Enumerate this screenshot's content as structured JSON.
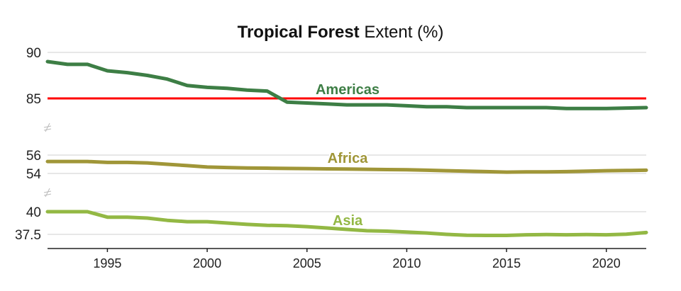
{
  "chart_data": {
    "type": "line",
    "title_bold": "Tropical Forest",
    "title_rest": " Extent (%)",
    "xlim": [
      1992,
      2022
    ],
    "x_ticks": [
      1995,
      2000,
      2005,
      2010,
      2015,
      2020
    ],
    "x": [
      1992,
      1993,
      1994,
      1995,
      1996,
      1997,
      1998,
      1999,
      2000,
      2001,
      2002,
      2003,
      2004,
      2005,
      2006,
      2007,
      2008,
      2009,
      2010,
      2011,
      2012,
      2013,
      2014,
      2015,
      2016,
      2017,
      2018,
      2019,
      2020,
      2021,
      2022
    ],
    "grid": true,
    "axis_break": true,
    "series": [
      {
        "name": "Americas",
        "color": "#3d7e45",
        "ylim": [
          83.5,
          90
        ],
        "y_ticks": [
          90,
          85
        ],
        "reference_line": {
          "value": 85,
          "color": "#ff0000"
        },
        "values": [
          89.0,
          88.7,
          88.7,
          88.0,
          87.8,
          87.5,
          87.1,
          86.4,
          86.2,
          86.1,
          85.9,
          85.8,
          84.6,
          84.5,
          84.4,
          84.3,
          84.3,
          84.3,
          84.2,
          84.1,
          84.1,
          84.0,
          84.0,
          84.0,
          84.0,
          84.0,
          83.9,
          83.9,
          83.9,
          83.95,
          84.0
        ]
      },
      {
        "name": "Africa",
        "color": "#a09638",
        "ylim": [
          54,
          56
        ],
        "y_ticks": [
          56,
          54
        ],
        "values": [
          55.3,
          55.3,
          55.3,
          55.2,
          55.2,
          55.15,
          55.0,
          54.85,
          54.7,
          54.65,
          54.6,
          54.58,
          54.55,
          54.53,
          54.5,
          54.48,
          54.45,
          54.42,
          54.4,
          54.35,
          54.3,
          54.25,
          54.2,
          54.15,
          54.17,
          54.18,
          54.2,
          54.25,
          54.3,
          54.32,
          54.35
        ]
      },
      {
        "name": "Asia",
        "color": "#93b844",
        "ylim": [
          37.5,
          40
        ],
        "y_ticks": [
          40,
          37.5
        ],
        "values": [
          40.0,
          40.0,
          40.0,
          39.4,
          39.4,
          39.3,
          39.05,
          38.9,
          38.9,
          38.75,
          38.6,
          38.5,
          38.45,
          38.35,
          38.2,
          38.05,
          37.9,
          37.85,
          37.75,
          37.65,
          37.5,
          37.4,
          37.38,
          37.38,
          37.45,
          37.48,
          37.45,
          37.48,
          37.45,
          37.52,
          37.7
        ]
      }
    ]
  }
}
